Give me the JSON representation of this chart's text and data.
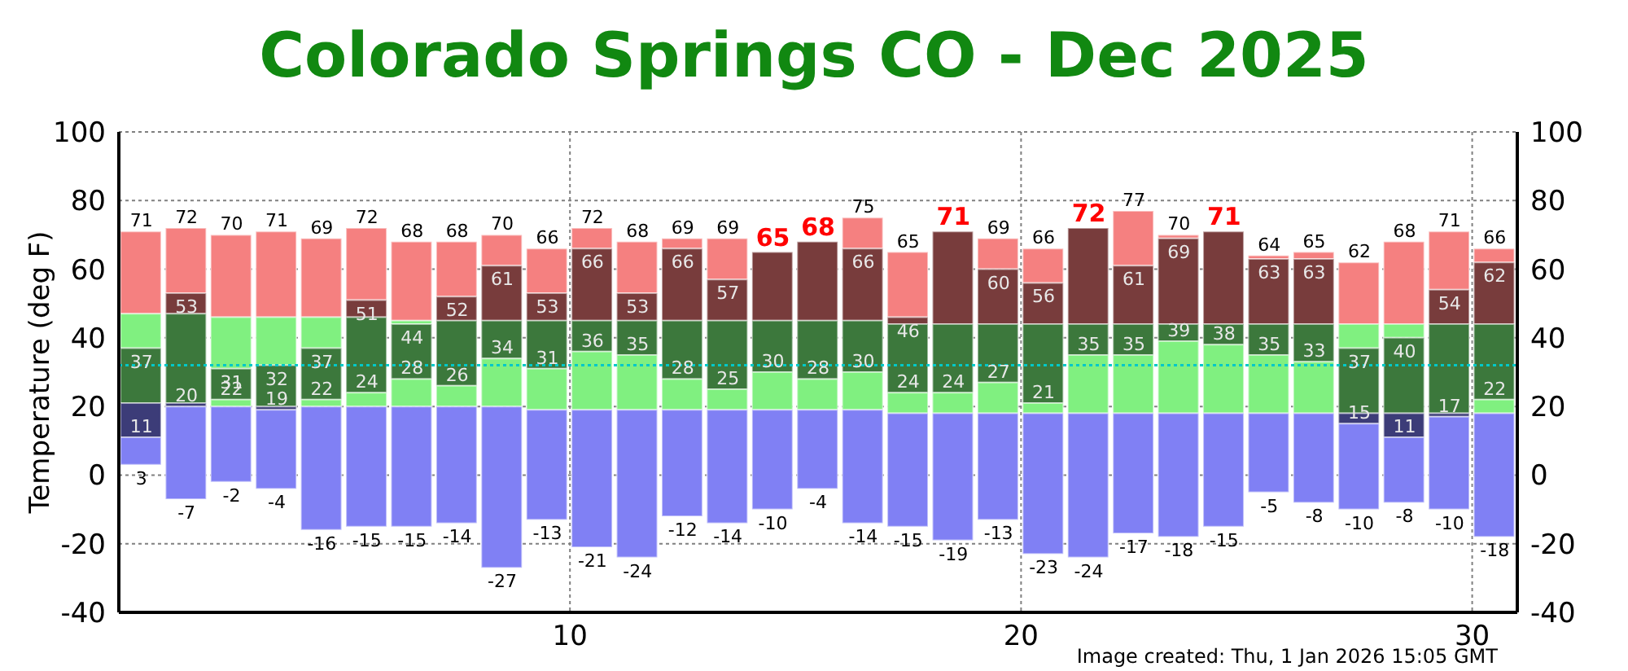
{
  "chart_data": {
    "type": "bar",
    "title": "Colorado Springs CO - Dec 2025",
    "ylabel": "Temperature (deg F)",
    "x": [
      0.5,
      1.5,
      2.5,
      3.5,
      4.5,
      5.5,
      6.5,
      7.5,
      8.5,
      9.5,
      10.5,
      11.5,
      12.5,
      13.5,
      14.5,
      15.5,
      16.5,
      17.5,
      18.5,
      19.5,
      20.5,
      21.5,
      22.5,
      23.5,
      24.5,
      25.5,
      26.5,
      27.5,
      28.5,
      29.5,
      30.5
    ],
    "xlim": [
      0,
      31
    ],
    "xticks": [
      10,
      20,
      30
    ],
    "ylim": [
      -40,
      100
    ],
    "yticks": [
      -40,
      -20,
      0,
      20,
      40,
      60,
      80,
      100
    ],
    "y2lim": [
      -40,
      100
    ],
    "y2ticks": [
      -40,
      -20,
      0,
      20,
      40,
      60,
      80,
      100
    ],
    "grid": true,
    "series": [
      {
        "color": "#f58080",
        "base": [
          47,
          53,
          46,
          46,
          46,
          51,
          45,
          52,
          61,
          53,
          66,
          53,
          66,
          57,
          null,
          null,
          66,
          46,
          null,
          60,
          56,
          null,
          61,
          69,
          null,
          63,
          63,
          44,
          44,
          54,
          62
        ],
        "values": [
          24,
          19,
          24,
          25,
          23,
          21,
          23,
          16,
          9,
          13,
          6,
          15,
          3,
          12,
          null,
          null,
          9,
          19,
          null,
          9,
          10,
          null,
          16,
          1,
          null,
          1,
          2,
          18,
          24,
          17,
          4
        ],
        "value_labels": [
          "71",
          "72",
          "70",
          "71",
          "69",
          "72",
          "68",
          "68",
          "70",
          "66",
          "72",
          "68",
          "69",
          "69",
          null,
          null,
          "75",
          "65",
          null,
          "69",
          "66",
          null,
          "77",
          "70",
          null,
          "64",
          "65",
          "62",
          "68",
          "71",
          "66"
        ]
      },
      {
        "color": "#783c3c",
        "base": [
          null,
          47,
          null,
          null,
          null,
          46,
          null,
          45,
          45,
          45,
          45,
          45,
          45,
          45,
          45,
          45,
          45,
          44,
          44,
          44,
          44,
          44,
          44,
          44,
          44,
          44,
          44,
          null,
          null,
          44,
          44
        ],
        "values": [
          null,
          6,
          null,
          null,
          null,
          5,
          null,
          7,
          16,
          8,
          21,
          8,
          21,
          12,
          20,
          23,
          21,
          2,
          27,
          16,
          12,
          28,
          17,
          25,
          27,
          19,
          19,
          null,
          null,
          10,
          18
        ]
      },
      {
        "color": "#80f080",
        "base": [
          37,
          null,
          31,
          32,
          37,
          null,
          44,
          null,
          null,
          null,
          null,
          null,
          null,
          null,
          null,
          null,
          null,
          null,
          null,
          null,
          null,
          null,
          null,
          null,
          null,
          null,
          null,
          37,
          40,
          null,
          null
        ],
        "values": [
          10,
          null,
          15,
          14,
          9,
          null,
          1,
          null,
          null,
          null,
          null,
          null,
          null,
          null,
          null,
          null,
          null,
          null,
          null,
          null,
          null,
          null,
          null,
          null,
          null,
          null,
          null,
          7,
          4,
          null,
          null
        ]
      },
      {
        "color": "#3c783c",
        "base": [
          21,
          21,
          22,
          20,
          22,
          24,
          28,
          26,
          34,
          31,
          36,
          35,
          28,
          25,
          30,
          28,
          30,
          24,
          24,
          27,
          21,
          35,
          35,
          39,
          38,
          35,
          33,
          18,
          18,
          18,
          22
        ],
        "values": [
          16,
          26,
          9,
          12,
          15,
          22,
          16,
          19,
          11,
          14,
          9,
          10,
          17,
          20,
          15,
          17,
          15,
          20,
          20,
          17,
          23,
          9,
          9,
          5,
          6,
          9,
          11,
          19,
          22,
          26,
          22
        ]
      },
      {
        "color": "#80f080",
        "base": [
          null,
          null,
          20,
          null,
          20,
          20,
          20,
          20,
          20,
          19,
          19,
          19,
          19,
          19,
          19,
          19,
          19,
          18,
          18,
          18,
          18,
          18,
          18,
          18,
          18,
          18,
          18,
          null,
          null,
          null,
          18
        ],
        "values": [
          null,
          null,
          2,
          null,
          2,
          4,
          8,
          6,
          14,
          12,
          17,
          16,
          9,
          6,
          11,
          9,
          11,
          6,
          6,
          9,
          3,
          17,
          17,
          21,
          20,
          17,
          15,
          null,
          null,
          null,
          4
        ]
      },
      {
        "color": "#3c3c78",
        "base": [
          11,
          20,
          null,
          19,
          null,
          null,
          null,
          null,
          null,
          null,
          null,
          null,
          null,
          null,
          null,
          null,
          null,
          null,
          null,
          null,
          null,
          null,
          null,
          null,
          null,
          null,
          null,
          15,
          11,
          17,
          null
        ],
        "values": [
          10,
          1,
          null,
          1,
          null,
          null,
          null,
          null,
          null,
          null,
          null,
          null,
          null,
          null,
          null,
          null,
          null,
          null,
          null,
          null,
          null,
          null,
          null,
          null,
          null,
          null,
          null,
          3,
          7,
          1,
          null
        ]
      },
      {
        "color": "#8080f4",
        "base": [
          11,
          20,
          20,
          19,
          20,
          20,
          20,
          20,
          20,
          19,
          19,
          19,
          19,
          19,
          19,
          19,
          19,
          18,
          18,
          18,
          18,
          18,
          18,
          18,
          18,
          18,
          18,
          15,
          11,
          17,
          18
        ],
        "values": [
          -8,
          -27,
          -22,
          -23,
          -36,
          -35,
          -35,
          -34,
          -47,
          -32,
          -40,
          -43,
          -31,
          -33,
          -29,
          -23,
          -33,
          -33,
          -37,
          -31,
          -41,
          -42,
          -35,
          -36,
          -33,
          -23,
          -26,
          -25,
          -19,
          -27,
          -36
        ],
        "value_labels": [
          "3",
          "-7",
          "-2",
          "-4",
          "-16",
          "-15",
          "-15",
          "-14",
          "-27",
          "-13",
          "-21",
          "-24",
          "-12",
          "-14",
          "-10",
          "-4",
          "-14",
          "-15",
          "-19",
          "-13",
          "-23",
          "-24",
          "-17",
          "-18",
          "-15",
          "-5",
          "-8",
          "-10",
          "-8",
          "-10",
          "-18"
        ]
      }
    ],
    "ref_lines": [
      {
        "axis": "y",
        "value": 32,
        "color": "#00c8c8",
        "line_style": "dotted"
      }
    ],
    "annotations": [
      {
        "text": "37",
        "x": 0.5,
        "y": 37
      },
      {
        "text": "11",
        "x": 0.5,
        "y": 11
      },
      {
        "text": "53",
        "x": 1.5,
        "y": 53
      },
      {
        "text": "20",
        "x": 1.5,
        "y": 20
      },
      {
        "text": "31",
        "x": 2.5,
        "y": 31
      },
      {
        "text": "22",
        "x": 2.5,
        "y": 22
      },
      {
        "text": "32",
        "x": 3.5,
        "y": 32
      },
      {
        "text": "19",
        "x": 3.5,
        "y": 19
      },
      {
        "text": "37",
        "x": 4.5,
        "y": 37
      },
      {
        "text": "22",
        "x": 4.5,
        "y": 22
      },
      {
        "text": "51",
        "x": 5.5,
        "y": 51
      },
      {
        "text": "24",
        "x": 5.5,
        "y": 24
      },
      {
        "text": "44",
        "x": 6.5,
        "y": 44
      },
      {
        "text": "28",
        "x": 6.5,
        "y": 28
      },
      {
        "text": "52",
        "x": 7.5,
        "y": 52
      },
      {
        "text": "26",
        "x": 7.5,
        "y": 26
      },
      {
        "text": "61",
        "x": 8.5,
        "y": 61
      },
      {
        "text": "34",
        "x": 8.5,
        "y": 34
      },
      {
        "text": "53",
        "x": 9.5,
        "y": 53
      },
      {
        "text": "31",
        "x": 9.5,
        "y": 31
      },
      {
        "text": "66",
        "x": 10.5,
        "y": 66
      },
      {
        "text": "36",
        "x": 10.5,
        "y": 36
      },
      {
        "text": "53",
        "x": 11.5,
        "y": 53
      },
      {
        "text": "35",
        "x": 11.5,
        "y": 35
      },
      {
        "text": "66",
        "x": 12.5,
        "y": 66
      },
      {
        "text": "28",
        "x": 12.5,
        "y": 28
      },
      {
        "text": "57",
        "x": 13.5,
        "y": 57
      },
      {
        "text": "25",
        "x": 13.5,
        "y": 25
      },
      {
        "text": "65",
        "x": 14.5,
        "y": 65
      },
      {
        "text": "30",
        "x": 14.5,
        "y": 30
      },
      {
        "text": "68",
        "x": 15.5,
        "y": 68
      },
      {
        "text": "28",
        "x": 15.5,
        "y": 28
      },
      {
        "text": "66",
        "x": 16.5,
        "y": 66
      },
      {
        "text": "30",
        "x": 16.5,
        "y": 30
      },
      {
        "text": "46",
        "x": 17.5,
        "y": 46
      },
      {
        "text": "24",
        "x": 17.5,
        "y": 24
      },
      {
        "text": "71",
        "x": 18.5,
        "y": 71
      },
      {
        "text": "24",
        "x": 18.5,
        "y": 24
      },
      {
        "text": "60",
        "x": 19.5,
        "y": 60
      },
      {
        "text": "27",
        "x": 19.5,
        "y": 27
      },
      {
        "text": "56",
        "x": 20.5,
        "y": 56
      },
      {
        "text": "21",
        "x": 20.5,
        "y": 21
      },
      {
        "text": "72",
        "x": 21.5,
        "y": 72
      },
      {
        "text": "35",
        "x": 21.5,
        "y": 35
      },
      {
        "text": "61",
        "x": 22.5,
        "y": 61
      },
      {
        "text": "35",
        "x": 22.5,
        "y": 35
      },
      {
        "text": "69",
        "x": 23.5,
        "y": 69
      },
      {
        "text": "39",
        "x": 23.5,
        "y": 39
      },
      {
        "text": "71",
        "x": 24.5,
        "y": 71
      },
      {
        "text": "38",
        "x": 24.5,
        "y": 38
      },
      {
        "text": "63",
        "x": 25.5,
        "y": 63
      },
      {
        "text": "35",
        "x": 25.5,
        "y": 35
      },
      {
        "text": "63",
        "x": 26.5,
        "y": 63
      },
      {
        "text": "33",
        "x": 26.5,
        "y": 33
      },
      {
        "text": "37",
        "x": 27.5,
        "y": 37
      },
      {
        "text": "15",
        "x": 27.5,
        "y": 15
      },
      {
        "text": "40",
        "x": 28.5,
        "y": 40
      },
      {
        "text": "11",
        "x": 28.5,
        "y": 11
      },
      {
        "text": "54",
        "x": 29.5,
        "y": 54
      },
      {
        "text": "17",
        "x": 29.5,
        "y": 17
      },
      {
        "text": "62",
        "x": 30.5,
        "y": 62
      },
      {
        "text": "22",
        "x": 30.5,
        "y": 22
      },
      "Image created: Thu, 1 Jan 2026 15:05 GMT"
    ]
  }
}
